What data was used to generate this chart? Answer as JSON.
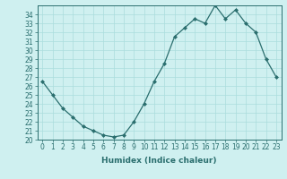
{
  "x": [
    0,
    1,
    2,
    3,
    4,
    5,
    6,
    7,
    8,
    9,
    10,
    11,
    12,
    13,
    14,
    15,
    16,
    17,
    18,
    19,
    20,
    21,
    22,
    23
  ],
  "y": [
    26.5,
    25.0,
    23.5,
    22.5,
    21.5,
    21.0,
    20.5,
    20.3,
    20.5,
    22.0,
    24.0,
    26.5,
    28.5,
    31.5,
    32.5,
    33.5,
    33.0,
    35.0,
    33.5,
    34.5,
    33.0,
    32.0,
    29.0,
    27.0
  ],
  "line_color": "#2a6e6e",
  "marker": "D",
  "markersize": 2.0,
  "linewidth": 0.9,
  "xlabel": "Humidex (Indice chaleur)",
  "ylabel": "",
  "xlim": [
    -0.5,
    23.5
  ],
  "ylim": [
    20,
    35
  ],
  "yticks": [
    20,
    21,
    22,
    23,
    24,
    25,
    26,
    27,
    28,
    29,
    30,
    31,
    32,
    33,
    34
  ],
  "xticks": [
    0,
    1,
    2,
    3,
    4,
    5,
    6,
    7,
    8,
    9,
    10,
    11,
    12,
    13,
    14,
    15,
    16,
    17,
    18,
    19,
    20,
    21,
    22,
    23
  ],
  "bg_color": "#cff0f0",
  "grid_color": "#aadddd",
  "label_fontsize": 6.5,
  "tick_fontsize": 5.5
}
